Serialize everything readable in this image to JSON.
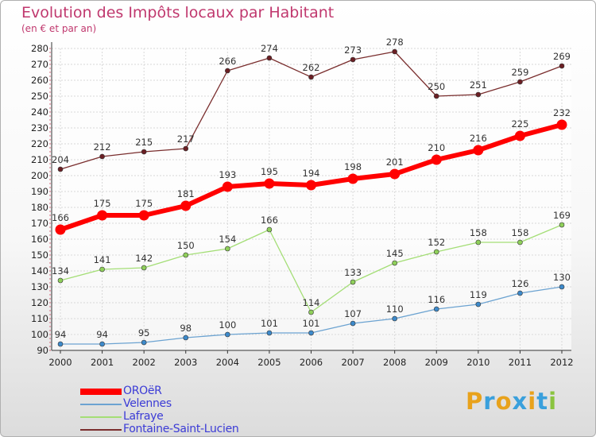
{
  "title": "Evolution des Impôts locaux par Habitant",
  "subtitle": "(en € et par an)",
  "brand": {
    "text": "Proxiti",
    "letter_colors": [
      "#e8a21c",
      "#3aa0dc",
      "#e8a21c",
      "#3aa0dc",
      "#e8a21c",
      "#3aa0dc",
      "#8ac43f"
    ]
  },
  "chart_data": {
    "type": "line",
    "x": [
      "2000",
      "2001",
      "2002",
      "2003",
      "2004",
      "2005",
      "2006",
      "2007",
      "2008",
      "2009",
      "2010",
      "2011",
      "2012"
    ],
    "ylim": [
      90,
      280
    ],
    "yticks": [
      90,
      100,
      110,
      120,
      130,
      140,
      150,
      160,
      170,
      180,
      190,
      200,
      210,
      220,
      230,
      240,
      250,
      260,
      270,
      280
    ],
    "grid": true,
    "legend_position": "bottom-left",
    "series": [
      {
        "name": "OROëR",
        "color": "#ff0000",
        "emphasis": true,
        "values": [
          166,
          175,
          175,
          181,
          193,
          195,
          194,
          198,
          201,
          210,
          216,
          225,
          232
        ]
      },
      {
        "name": "Velennes",
        "color": "#6ca3d1",
        "marker_color": "#3d8acb",
        "values": [
          94,
          94,
          95,
          98,
          100,
          101,
          101,
          107,
          110,
          116,
          119,
          126,
          130
        ]
      },
      {
        "name": "Lafraye",
        "color": "#a4de76",
        "marker_color": "#8fd05a",
        "values": [
          134,
          141,
          142,
          150,
          154,
          166,
          114,
          133,
          145,
          152,
          158,
          158,
          169
        ]
      },
      {
        "name": "Fontaine-Saint-Lucien",
        "color": "#7a2e2e",
        "marker_color": "#6b1f24",
        "values": [
          204,
          212,
          215,
          217,
          266,
          274,
          262,
          273,
          278,
          250,
          251,
          259,
          269
        ]
      }
    ]
  }
}
